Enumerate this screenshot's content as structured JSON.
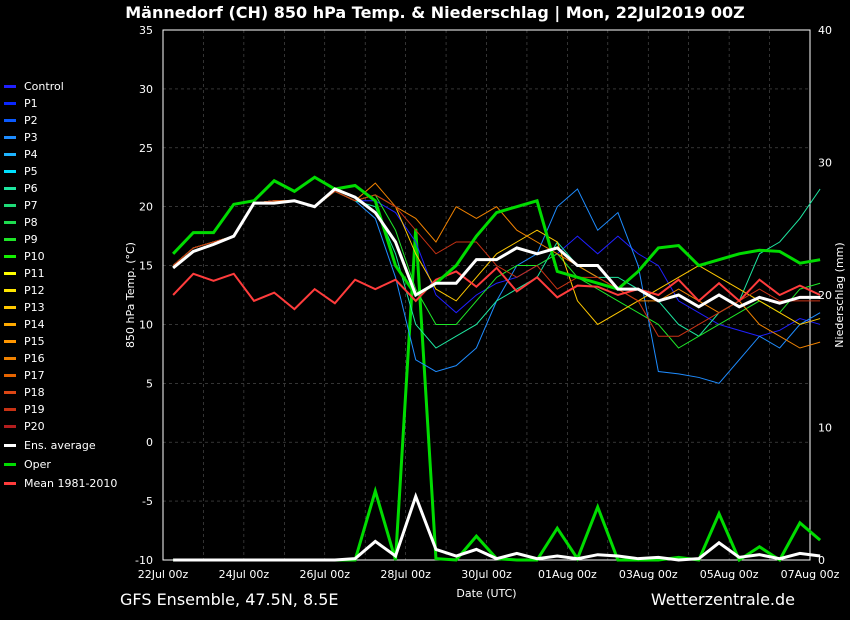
{
  "title": "Männedorf  (CH)  850 hPa Temp. & Niederschlag | Mon, 22Jul2019 00Z",
  "footer_left": "GFS Ensemble, 47.5N, 8.5E",
  "footer_right": "Wetterzentrale.de",
  "legend": [
    {
      "label": "Control",
      "color": "#2020ff"
    },
    {
      "label": "P1",
      "color": "#0a28ff"
    },
    {
      "label": "P2",
      "color": "#0a5aff"
    },
    {
      "label": "P3",
      "color": "#1e8cff"
    },
    {
      "label": "P4",
      "color": "#1eb4ff"
    },
    {
      "label": "P5",
      "color": "#00e0ff"
    },
    {
      "label": "P6",
      "color": "#1ee6a0"
    },
    {
      "label": "P7",
      "color": "#1edc78"
    },
    {
      "label": "P8",
      "color": "#1edc50"
    },
    {
      "label": "P9",
      "color": "#1ee628"
    },
    {
      "label": "P10",
      "color": "#14f000"
    },
    {
      "label": "P11",
      "color": "#ffff00"
    },
    {
      "label": "P12",
      "color": "#ffe600"
    },
    {
      "label": "P13",
      "color": "#ffc800"
    },
    {
      "label": "P14",
      "color": "#ffaa00"
    },
    {
      "label": "P15",
      "color": "#ff9600"
    },
    {
      "label": "P16",
      "color": "#f08200"
    },
    {
      "label": "P17",
      "color": "#e66400"
    },
    {
      "label": "P18",
      "color": "#dc4614"
    },
    {
      "label": "P19",
      "color": "#c83214"
    },
    {
      "label": "P20",
      "color": "#b41e1e"
    },
    {
      "label": "Ens. average",
      "color": "#ffffff"
    },
    {
      "label": "Oper",
      "color": "#00dc00"
    },
    {
      "label": "Mean 1981-2010",
      "color": "#ff3c3c"
    }
  ],
  "chart_data": {
    "type": "line",
    "title": "Männedorf  (CH)  850 hPa Temp. & Niederschlag | Mon, 22Jul2019 00Z",
    "xlabel": "Date (UTC)",
    "ylabel": "850 hPa Temp. (°C)",
    "y2label": "Niederschlag (mm)",
    "ylim": [
      -10,
      35
    ],
    "y2lim": [
      0,
      40
    ],
    "yticks": [
      "35",
      "30",
      "25",
      "20",
      "15",
      "10",
      "5",
      "0",
      "-5",
      "-10"
    ],
    "y2ticks": [
      "40",
      "30",
      "20",
      "10",
      "0"
    ],
    "xticks": [
      "22Jul 00z",
      "24Jul 00z",
      "26Jul 00z",
      "28Jul 00z",
      "30Jul 00z",
      "01Aug 00z",
      "03Aug 00z",
      "05Aug 00z",
      "07Aug 00z"
    ],
    "x_days_step": 0.5,
    "grid": true,
    "temp_series": [
      {
        "name": "Control",
        "color": "#2020ff",
        "values": [
          15,
          16.5,
          17,
          17.5,
          20.3,
          20.5,
          20.5,
          20,
          21.3,
          20.5,
          20.5,
          19.5,
          17,
          12.5,
          11,
          12.5,
          13.5,
          14,
          15,
          16,
          17.5,
          16,
          17.5,
          16,
          15,
          12,
          11,
          10,
          9.5,
          9,
          9.5,
          10.5,
          10
        ]
      },
      {
        "name": "P3",
        "color": "#1e8cff",
        "values": [
          15,
          16.5,
          17,
          17.5,
          20.3,
          20.5,
          20.5,
          20,
          21.3,
          20.5,
          19,
          14,
          7,
          6,
          6.5,
          8,
          12,
          15,
          16,
          20,
          21.5,
          18,
          19.5,
          15,
          6,
          5.8,
          5.5,
          5,
          7,
          9,
          8,
          10,
          11
        ]
      },
      {
        "name": "P6",
        "color": "#1ee6a0",
        "values": [
          15,
          16.5,
          17,
          17.5,
          20.3,
          20.5,
          20.5,
          20,
          21.3,
          20.5,
          20,
          16,
          10,
          8,
          9,
          10,
          12,
          13,
          14,
          17,
          15,
          14,
          14,
          13,
          12,
          10,
          9,
          11,
          12,
          16,
          17,
          19,
          21.5
        ]
      },
      {
        "name": "P9",
        "color": "#1ee628",
        "values": [
          15,
          16.5,
          17,
          17.5,
          20.3,
          20.5,
          20.5,
          20,
          21.3,
          20.5,
          21,
          18,
          13,
          10,
          10,
          12,
          14,
          15,
          15,
          16,
          14,
          13,
          12,
          11,
          10,
          8,
          9,
          10,
          11,
          12,
          11,
          13,
          13.5
        ]
      },
      {
        "name": "P13",
        "color": "#ffc800",
        "values": [
          15,
          16.5,
          17,
          17.5,
          20.3,
          20.5,
          20.5,
          20,
          21.3,
          20.5,
          21,
          20,
          16,
          13,
          12,
          14,
          16,
          17,
          18,
          17,
          12,
          10,
          11,
          12,
          13,
          14,
          15,
          14,
          13,
          12,
          11,
          10,
          10.5
        ]
      },
      {
        "name": "P16",
        "color": "#f08200",
        "values": [
          15,
          16.5,
          17,
          17.5,
          20.3,
          20.5,
          20.5,
          20,
          21.3,
          20.5,
          22,
          20,
          19,
          17,
          20,
          19,
          20,
          18,
          17,
          16,
          15,
          14,
          13,
          12,
          12,
          13,
          12,
          11,
          12,
          10,
          9,
          8,
          8.5
        ]
      },
      {
        "name": "P19",
        "color": "#c83214",
        "values": [
          15,
          16.5,
          17,
          17.5,
          20.3,
          20.5,
          20.5,
          20,
          21.3,
          20.5,
          21,
          20,
          18,
          16,
          17,
          17,
          15,
          14,
          15,
          13,
          14,
          14,
          13,
          12,
          9,
          9,
          10,
          11,
          12,
          13,
          12,
          12,
          12
        ]
      },
      {
        "name": "Mean 1981-2010",
        "color": "#ff3c3c",
        "values": [
          12.5,
          14.3,
          13.7,
          14.3,
          12,
          12.7,
          11.3,
          13,
          11.8,
          13.8,
          13,
          13.8,
          12,
          13.8,
          14.5,
          13.2,
          14.8,
          12.8,
          14,
          12.3,
          13.3,
          13.2,
          12.5,
          13,
          12.5,
          13.8,
          12,
          13.5,
          12,
          13.8,
          12.5,
          13.3,
          12.5
        ]
      },
      {
        "name": "Oper",
        "color": "#00dc00",
        "values": [
          16,
          17.8,
          17.8,
          20.2,
          20.5,
          22.2,
          21.3,
          22.5,
          21.5,
          21.8,
          20.5,
          15,
          12.5,
          13.5,
          15,
          17.5,
          19.5,
          20,
          20.5,
          14.5,
          14,
          13.5,
          13,
          14.5,
          16.5,
          16.7,
          15,
          15.5,
          16,
          16.3,
          16.2,
          15.2,
          15.5
        ]
      },
      {
        "name": "Ens. average",
        "color": "#ffffff",
        "values": [
          14.8,
          16.2,
          16.8,
          17.5,
          20.3,
          20.3,
          20.5,
          20.0,
          21.5,
          20.8,
          19.5,
          17,
          12.5,
          13.5,
          13.5,
          15.5,
          15.5,
          16.5,
          16,
          16.5,
          15,
          15,
          13,
          13,
          12,
          12.5,
          11.5,
          12.5,
          11.5,
          12.3,
          11.8,
          12.3,
          12.3
        ]
      }
    ],
    "precip_series": [
      {
        "name": "Oper",
        "color": "#00dc00",
        "values": [
          0,
          0,
          0,
          0,
          0,
          0,
          0,
          0,
          0,
          0,
          5.2,
          0,
          25,
          0.1,
          0,
          1.8,
          0.1,
          0,
          0,
          2.4,
          0.1,
          4,
          0,
          0,
          0,
          0.2,
          0,
          3.5,
          0,
          1,
          0,
          2.8,
          1.5
        ]
      },
      {
        "name": "Ens. average",
        "color": "#ffffff",
        "values": [
          0,
          0,
          0,
          0,
          0,
          0,
          0,
          0,
          0,
          0.1,
          1.4,
          0.3,
          4.8,
          0.8,
          0.3,
          0.8,
          0.1,
          0.5,
          0.1,
          0.3,
          0.1,
          0.4,
          0.3,
          0.1,
          0.2,
          0,
          0.1,
          1.3,
          0.2,
          0.4,
          0.1,
          0.5,
          0.3
        ]
      }
    ]
  }
}
